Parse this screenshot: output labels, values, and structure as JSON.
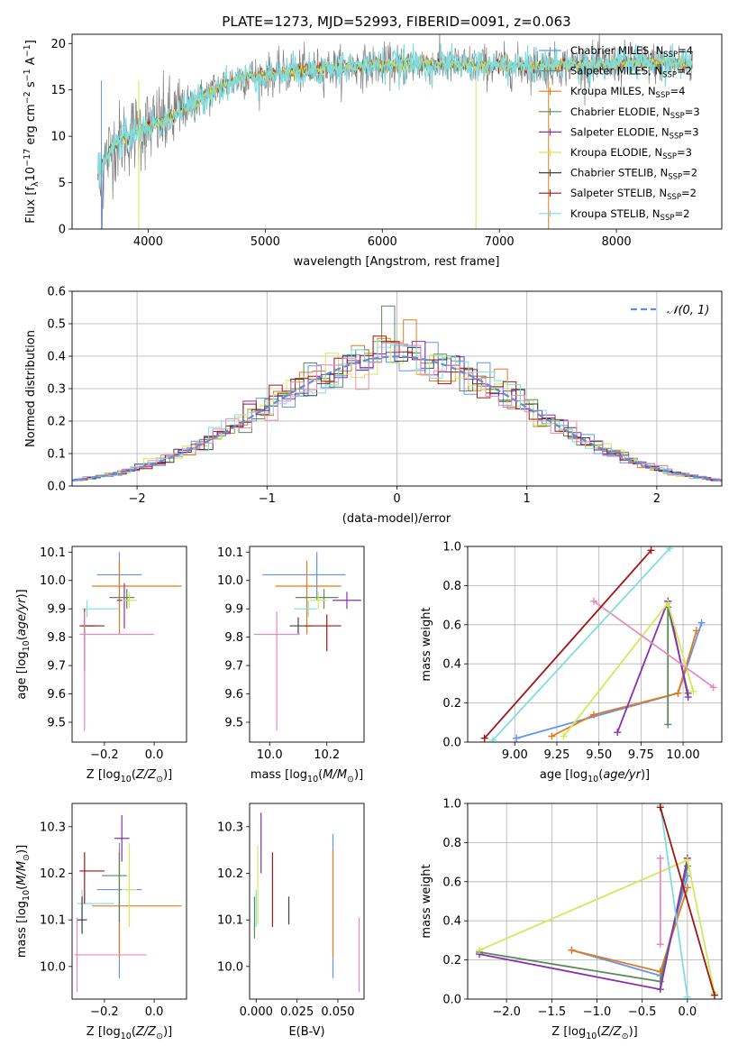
{
  "title": "PLATE=1273, MJD=52993, FIBERID=0091, z=0.063",
  "colors": {
    "chabrier_miles": "#6495ed",
    "salpeter_miles": "#808080",
    "kroupa_miles": "#e07b1e",
    "chabrier_elodie": "#5a8a5a",
    "salpeter_elodie": "#8b2fb0",
    "kroupa_elodie": "#d4e85a",
    "chabrier_stelib": "#404040",
    "salpeter_stelib": "#a01515",
    "kroupa_stelib": "#7fdce0",
    "pink": "#e889c0",
    "normal": "#5b8fd8"
  },
  "chart_data": [
    {
      "type": "line",
      "title": "PLATE=1273, MJD=52993, FIBERID=0091, z=0.063",
      "xlabel": "wavelength [Angstrom, rest frame]",
      "ylabel": "Flux [fλ10⁻¹⁷ erg cm⁻² s⁻¹ A⁻¹]",
      "xlim": [
        3350,
        8900
      ],
      "ylim": [
        0,
        21
      ],
      "xticks": [
        4000,
        5000,
        6000,
        7000,
        8000
      ],
      "yticks": [
        0,
        5,
        10,
        15,
        20
      ],
      "legend": "top-right",
      "series": [
        {
          "name": "Chabrier MILES, N_SSP=4",
          "color_key": "chabrier_miles"
        },
        {
          "name": "Salpeter MILES, N_SSP=2",
          "color_key": "salpeter_miles"
        },
        {
          "name": "Kroupa MILES, N_SSP=4",
          "color_key": "kroupa_miles"
        },
        {
          "name": "Chabrier ELODIE, N_SSP=3",
          "color_key": "chabrier_elodie"
        },
        {
          "name": "Salpeter ELODIE, N_SSP=3",
          "color_key": "salpeter_elodie"
        },
        {
          "name": "Kroupa ELODIE, N_SSP=3",
          "color_key": "kroupa_elodie"
        },
        {
          "name": "Chabrier STELIB, N_SSP=2",
          "color_key": "chabrier_stelib"
        },
        {
          "name": "Salpeter STELIB, N_SSP=2",
          "color_key": "salpeter_stelib"
        },
        {
          "name": "Kroupa STELIB, N_SSP=2",
          "color_key": "kroupa_stelib"
        }
      ],
      "continuum": {
        "x": [
          3550,
          3700,
          3850,
          4000,
          4150,
          4300,
          4450,
          4600,
          4800,
          5000,
          5200,
          5500,
          5800,
          6100,
          6400,
          6700,
          7000,
          7300,
          7600,
          7900,
          8200,
          8500,
          8650
        ],
        "y": [
          5.5,
          9,
          10.2,
          11,
          11.7,
          12.8,
          14,
          15.3,
          16.3,
          16.6,
          16.9,
          17.3,
          17.5,
          17.7,
          17.8,
          17.7,
          17.6,
          17.5,
          17.7,
          17.8,
          17.9,
          17.9,
          17.8
        ]
      }
    },
    {
      "type": "histogram",
      "xlabel": "(data-model)/error",
      "ylabel": "Normed distribution",
      "xlim": [
        -2.5,
        2.5
      ],
      "ylim": [
        0,
        0.6
      ],
      "xticks": [
        -2,
        -1,
        0,
        1,
        2
      ],
      "yticks": [
        0.0,
        0.1,
        0.2,
        0.3,
        0.4,
        0.5,
        0.6
      ],
      "grid": true,
      "legend": "top-right",
      "curve_label": "𝒩(0, 1)",
      "curve_mu": 0,
      "curve_sigma": 1,
      "bin_width": 0.1
    },
    {
      "type": "scatter",
      "xlabel": "Z [log10(Z/Z☉)]",
      "ylabel": "age  [log10(age/yr)]",
      "xlim": [
        -0.33,
        0.13
      ],
      "ylim": [
        9.43,
        10.12
      ],
      "xticks": [
        -0.2,
        0.0
      ],
      "yticks": [
        9.5,
        9.6,
        9.7,
        9.8,
        9.9,
        10.0,
        10.1
      ],
      "points": [
        {
          "x": -0.14,
          "y": 10.02,
          "xerr": [
            0.09,
            0.09
          ],
          "yerr": [
            0.09,
            0.08
          ],
          "c": "chabrier_miles"
        },
        {
          "x": -0.14,
          "y": 9.98,
          "xerr": [
            0.11,
            0.25
          ],
          "yerr": [
            0.17,
            0.09
          ],
          "c": "kroupa_miles"
        },
        {
          "x": -0.11,
          "y": 9.94,
          "xerr": [
            0.07,
            0.03
          ],
          "yerr": [
            0.04,
            0.03
          ],
          "c": "chabrier_elodie"
        },
        {
          "x": -0.12,
          "y": 9.93,
          "xerr": [
            0.03,
            0.02
          ],
          "yerr": [
            0.1,
            0.06
          ],
          "c": "salpeter_elodie"
        },
        {
          "x": -0.1,
          "y": 9.93,
          "xerr": [
            0.03,
            0.03
          ],
          "yerr": [
            0.03,
            0.03
          ],
          "c": "kroupa_elodie"
        },
        {
          "x": -0.27,
          "y": 9.9,
          "xerr": [
            0.02,
            0.13
          ],
          "yerr": [
            0.03,
            0.03
          ],
          "c": "kroupa_stelib"
        },
        {
          "x": -0.28,
          "y": 9.84,
          "xerr": [
            0.01,
            0.04
          ],
          "yerr": [
            0.05,
            0.05
          ],
          "c": "chabrier_stelib"
        },
        {
          "x": -0.28,
          "y": 9.84,
          "xerr": [
            0.02,
            0.08
          ],
          "yerr": [
            0.16,
            0.06
          ],
          "c": "salpeter_stelib"
        },
        {
          "x": -0.28,
          "y": 9.81,
          "xerr": [
            0.02,
            0.28
          ],
          "yerr": [
            0.34,
            0.08
          ],
          "c": "pink"
        }
      ]
    },
    {
      "type": "scatter",
      "xlabel": "mass [log10(M/M☉)]",
      "ylabel": "",
      "xlim": [
        9.93,
        10.33
      ],
      "ylim": [
        9.43,
        10.12
      ],
      "xticks": [
        10.0,
        10.2
      ],
      "yticks": [
        9.5,
        9.6,
        9.7,
        9.8,
        9.9,
        10.0,
        10.1
      ],
      "points": [
        {
          "x": 10.165,
          "y": 10.02,
          "xerr": [
            0.19,
            0.1
          ],
          "yerr": [
            0.09,
            0.08
          ],
          "c": "chabrier_miles"
        },
        {
          "x": 10.13,
          "y": 9.98,
          "xerr": [
            0.11,
            0.12
          ],
          "yerr": [
            0.17,
            0.09
          ],
          "c": "kroupa_miles"
        },
        {
          "x": 10.19,
          "y": 9.94,
          "xerr": [
            0.1,
            0.05
          ],
          "yerr": [
            0.04,
            0.03
          ],
          "c": "chabrier_elodie"
        },
        {
          "x": 10.27,
          "y": 9.93,
          "xerr": [
            0.05,
            0.05
          ],
          "yerr": [
            0.03,
            0.03
          ],
          "c": "salpeter_elodie"
        },
        {
          "x": 10.17,
          "y": 9.93,
          "xerr": [
            0.03,
            0.03
          ],
          "yerr": [
            0.03,
            0.03
          ],
          "c": "kroupa_elodie"
        },
        {
          "x": 10.135,
          "y": 9.9,
          "xerr": [
            0.05,
            0.03
          ],
          "yerr": [
            0.03,
            0.03
          ],
          "c": "kroupa_stelib"
        },
        {
          "x": 10.1,
          "y": 9.84,
          "xerr": [
            0.03,
            0.05
          ],
          "yerr": [
            0.03,
            0.03
          ],
          "c": "chabrier_stelib"
        },
        {
          "x": 10.2,
          "y": 9.84,
          "xerr": [
            0.08,
            0.05
          ],
          "yerr": [
            0.09,
            0.04
          ],
          "c": "salpeter_stelib"
        },
        {
          "x": 10.025,
          "y": 9.81,
          "xerr": [
            0.08,
            0.08
          ],
          "yerr": [
            0.34,
            0.08
          ],
          "c": "pink"
        }
      ]
    },
    {
      "type": "line",
      "xlabel": "age  [log10(age/yr)]",
      "ylabel": "mass weight",
      "xlim": [
        8.72,
        10.23
      ],
      "ylim": [
        0,
        1
      ],
      "xticks": [
        9.0,
        9.25,
        9.5,
        9.75,
        10.0
      ],
      "yticks": [
        0.0,
        0.2,
        0.4,
        0.6,
        0.8,
        1.0
      ],
      "grid": true,
      "series": [
        {
          "c": "chabrier_miles",
          "x": [
            9.01,
            9.97,
            10.11
          ],
          "y": [
            0.02,
            0.25,
            0.61
          ]
        },
        {
          "c": "kroupa_miles",
          "x": [
            9.22,
            9.47,
            9.97,
            10.08
          ],
          "y": [
            0.03,
            0.14,
            0.25,
            0.57
          ]
        },
        {
          "c": "chabrier_elodie",
          "x": [
            9.91,
            9.91,
            10.03
          ],
          "y": [
            0.09,
            0.69,
            0.25
          ]
        },
        {
          "c": "salpeter_elodie",
          "x": [
            9.61,
            9.91,
            10.03
          ],
          "y": [
            0.05,
            0.72,
            0.23
          ]
        },
        {
          "c": "kroupa_elodie",
          "x": [
            9.29,
            9.91,
            10.06
          ],
          "y": [
            0.03,
            0.71,
            0.26
          ]
        },
        {
          "c": "pink",
          "x": [
            9.47,
            10.18
          ],
          "y": [
            0.72,
            0.28
          ]
        },
        {
          "c": "kroupa_stelib",
          "x": [
            8.87,
            9.92
          ],
          "y": [
            0.01,
            0.99
          ]
        },
        {
          "c": "salpeter_stelib",
          "x": [
            8.82,
            9.81
          ],
          "y": [
            0.02,
            0.98
          ]
        }
      ]
    },
    {
      "type": "scatter",
      "xlabel": "Z [log10(Z/Z☉)]",
      "ylabel": "mass [log10(M/M☉)]",
      "xlim": [
        -0.33,
        0.13
      ],
      "ylim": [
        9.93,
        10.35
      ],
      "xticks": [
        -0.2,
        0.0
      ],
      "yticks": [
        10.0,
        10.1,
        10.2,
        10.3
      ],
      "points": [
        {
          "x": -0.14,
          "y": 10.165,
          "xerr": [
            0.09,
            0.09
          ],
          "yerr": [
            0.19,
            0.1
          ],
          "c": "chabrier_miles"
        },
        {
          "x": -0.14,
          "y": 10.13,
          "xerr": [
            0.11,
            0.25
          ],
          "yerr": [
            0.11,
            0.12
          ],
          "c": "kroupa_miles"
        },
        {
          "x": -0.14,
          "y": 10.195,
          "xerr": [
            0.07,
            0.03
          ],
          "yerr": [
            0.1,
            0.05
          ],
          "c": "chabrier_elodie"
        },
        {
          "x": -0.13,
          "y": 10.275,
          "xerr": [
            0.03,
            0.03
          ],
          "yerr": [
            0.05,
            0.05
          ],
          "c": "salpeter_elodie"
        },
        {
          "x": -0.1,
          "y": 10.165,
          "xerr": [
            0.03,
            0.03
          ],
          "yerr": [
            0.08,
            0.1
          ],
          "c": "kroupa_elodie"
        },
        {
          "x": -0.29,
          "y": 10.135,
          "xerr": [
            0.02,
            0.13
          ],
          "yerr": [
            0.05,
            0.03
          ],
          "c": "kroupa_stelib"
        },
        {
          "x": -0.29,
          "y": 10.1,
          "xerr": [
            0.02,
            0.02
          ],
          "yerr": [
            0.03,
            0.05
          ],
          "c": "chabrier_stelib"
        },
        {
          "x": -0.28,
          "y": 10.205,
          "xerr": [
            0.02,
            0.08
          ],
          "yerr": [
            0.07,
            0.04
          ],
          "c": "salpeter_stelib"
        },
        {
          "x": -0.31,
          "y": 10.025,
          "xerr": [
            0.01,
            0.28
          ],
          "yerr": [
            0.08,
            0.08
          ],
          "c": "pink"
        }
      ]
    },
    {
      "type": "scatter",
      "xlabel": "E(B-V)",
      "ylabel": "",
      "xlim": [
        -0.004,
        0.066
      ],
      "ylim": [
        9.93,
        10.35
      ],
      "xticks": [
        0.0,
        0.025,
        0.05
      ],
      "xtick_labels": [
        "0.000",
        "0.025",
        "0.050"
      ],
      "yticks": [
        10.0,
        10.1,
        10.2,
        10.3
      ],
      "points": [
        {
          "x": 0.047,
          "y": 10.165,
          "xerr": [
            0,
            0
          ],
          "yerr": [
            0.19,
            0.12
          ],
          "c": "chabrier_miles"
        },
        {
          "x": 0.047,
          "y": 10.13,
          "xerr": [
            0,
            0
          ],
          "yerr": [
            0.11,
            0.12
          ],
          "c": "kroupa_miles"
        },
        {
          "x": -0.001,
          "y": 10.1,
          "xerr": [
            0,
            0
          ],
          "yerr": [
            0.04,
            0.05
          ],
          "c": "chabrier_elodie"
        },
        {
          "x": 0.003,
          "y": 10.26,
          "xerr": [
            0,
            0
          ],
          "yerr": [
            0.06,
            0.07
          ],
          "c": "salpeter_elodie"
        },
        {
          "x": 0.001,
          "y": 10.17,
          "xerr": [
            0,
            0
          ],
          "yerr": [
            0.08,
            0.09
          ],
          "c": "kroupa_elodie"
        },
        {
          "x": 0.0,
          "y": 10.135,
          "xerr": [
            0,
            0
          ],
          "yerr": [
            0.05,
            0.03
          ],
          "c": "kroupa_stelib"
        },
        {
          "x": 0.02,
          "y": 10.12,
          "xerr": [
            0,
            0
          ],
          "yerr": [
            0.03,
            0.03
          ],
          "c": "chabrier_stelib"
        },
        {
          "x": 0.01,
          "y": 10.175,
          "xerr": [
            0,
            0
          ],
          "yerr": [
            0.09,
            0.07
          ],
          "c": "salpeter_stelib"
        },
        {
          "x": 0.063,
          "y": 10.025,
          "xerr": [
            0,
            0
          ],
          "yerr": [
            0.08,
            0.08
          ],
          "c": "pink"
        }
      ]
    },
    {
      "type": "line",
      "xlabel": "Z [log10(Z/Z☉)]",
      "ylabel": "mass weight",
      "xlim": [
        -2.43,
        0.38
      ],
      "ylim": [
        0,
        1
      ],
      "xticks": [
        -2.0,
        -1.5,
        -1.0,
        -0.5,
        0.0
      ],
      "yticks": [
        0.0,
        0.2,
        0.4,
        0.6,
        0.8,
        1.0
      ],
      "grid": true,
      "series": [
        {
          "c": "chabrier_miles",
          "x": [
            -1.28,
            -0.3,
            0.0
          ],
          "y": [
            0.25,
            0.12,
            0.63
          ]
        },
        {
          "c": "kroupa_miles",
          "x": [
            -1.28,
            -0.3,
            0.0
          ],
          "y": [
            0.25,
            0.14,
            0.57
          ]
        },
        {
          "c": "chabrier_elodie",
          "x": [
            -2.3,
            -0.3,
            0.0
          ],
          "y": [
            0.24,
            0.09,
            0.68
          ]
        },
        {
          "c": "salpeter_elodie",
          "x": [
            -2.3,
            -0.3,
            0.0
          ],
          "y": [
            0.23,
            0.05,
            0.72
          ]
        },
        {
          "c": "kroupa_elodie",
          "x": [
            -2.3,
            0.0,
            0.3
          ],
          "y": [
            0.25,
            0.71,
            0.03
          ]
        },
        {
          "c": "pink",
          "x": [
            -0.3,
            -0.3
          ],
          "y": [
            0.72,
            0.28
          ]
        },
        {
          "c": "kroupa_stelib",
          "x": [
            -0.3,
            0.0
          ],
          "y": [
            0.99,
            0.01
          ]
        },
        {
          "c": "salpeter_stelib",
          "x": [
            -0.3,
            0.3
          ],
          "y": [
            0.98,
            0.02
          ]
        }
      ]
    }
  ]
}
